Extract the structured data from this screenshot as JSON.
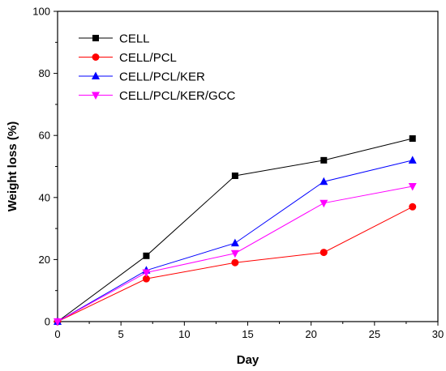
{
  "chart_data": {
    "type": "line",
    "xlabel": "Day",
    "ylabel": "Weight loss (%)",
    "xlim": [
      0,
      30
    ],
    "ylim": [
      0,
      100
    ],
    "x_ticks": [
      0,
      5,
      10,
      15,
      20,
      25,
      30
    ],
    "y_ticks": [
      0,
      20,
      40,
      60,
      80,
      100
    ],
    "grid": false,
    "legend_position": "top-left",
    "x": [
      0,
      7,
      14,
      21,
      28
    ],
    "series": [
      {
        "name": "CELL",
        "color": "#000000",
        "marker": "square",
        "values": [
          0,
          21.2,
          47.0,
          52.0,
          59.0
        ]
      },
      {
        "name": "CELL/PCL",
        "color": "#ff0000",
        "marker": "circle",
        "values": [
          0,
          13.8,
          19.0,
          22.3,
          37.0
        ]
      },
      {
        "name": "CELL/PCL/KER",
        "color": "#0000ff",
        "marker": "triangle-up",
        "values": [
          0,
          16.5,
          25.3,
          45.1,
          52.0
        ]
      },
      {
        "name": "CELL/PCL/KER/GCC",
        "color": "#ff00ff",
        "marker": "triangle-down",
        "values": [
          0,
          15.8,
          22.0,
          38.2,
          43.6
        ]
      }
    ]
  }
}
